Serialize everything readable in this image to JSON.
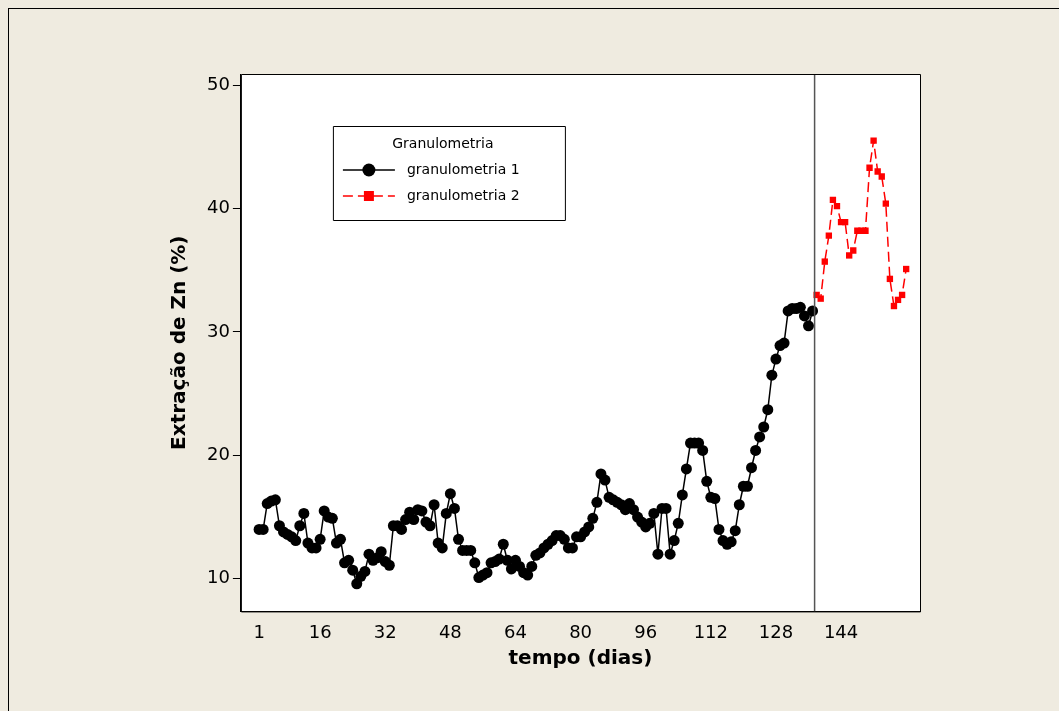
{
  "chart_data": {
    "type": "line",
    "xlabel": "tempo (dias)",
    "ylabel": "Extração de Zn (%)",
    "legend_title": "Granulometria",
    "legend": "top left",
    "grid": false,
    "xlim": [
      -3.47,
      163.4
    ],
    "xticks": [
      1,
      16,
      32,
      48,
      64,
      80,
      96,
      112,
      128,
      144
    ],
    "ylim": [
      7.36,
      50.9
    ],
    "yticks": [
      10,
      20,
      30,
      40,
      50
    ],
    "ref_lines": [
      {
        "axis": "x",
        "value": 137.5,
        "color": "#555555"
      }
    ],
    "series": [
      {
        "name": "granulometria 1",
        "color": "#000000",
        "marker": "circle",
        "line_style": "solid",
        "x": [
          1,
          2,
          3,
          4,
          5,
          6,
          7,
          8,
          9,
          10,
          11,
          12,
          13,
          14,
          15,
          16,
          17,
          18,
          19,
          20,
          21,
          22,
          23,
          24,
          25,
          26,
          27,
          28,
          29,
          30,
          31,
          32,
          33,
          34,
          35,
          36,
          37,
          38,
          39,
          40,
          41,
          42,
          43,
          44,
          45,
          46,
          47,
          48,
          49,
          50,
          51,
          52,
          53,
          54,
          55,
          56,
          57,
          58,
          59,
          60,
          61,
          62,
          63,
          64,
          65,
          66,
          67,
          68,
          69,
          70,
          71,
          72,
          73,
          74,
          75,
          76,
          77,
          78,
          79,
          80,
          81,
          82,
          83,
          84,
          85,
          86,
          87,
          88,
          89,
          90,
          91,
          92,
          93,
          94,
          95,
          96,
          97,
          98,
          99,
          100,
          101,
          102,
          103,
          104,
          105,
          106,
          107,
          108,
          109,
          110,
          111,
          112,
          113,
          114,
          115,
          116,
          117,
          118,
          119,
          120,
          121,
          122,
          123,
          124,
          125,
          126,
          127,
          128,
          129,
          130,
          131,
          132,
          133,
          134,
          135,
          136,
          137
        ],
        "values": [
          14.0,
          14.0,
          16.1,
          16.3,
          16.4,
          14.3,
          13.8,
          13.6,
          13.4,
          13.1,
          14.3,
          15.3,
          12.9,
          12.5,
          12.5,
          13.2,
          15.5,
          15.0,
          14.9,
          12.9,
          13.2,
          11.3,
          11.5,
          10.7,
          9.6,
          10.2,
          10.6,
          12.0,
          11.5,
          11.7,
          12.2,
          11.4,
          11.1,
          14.3,
          14.3,
          14.0,
          14.8,
          15.4,
          14.8,
          15.6,
          15.5,
          14.6,
          14.3,
          16.0,
          12.9,
          12.5,
          15.3,
          16.9,
          15.7,
          13.2,
          12.3,
          12.3,
          12.3,
          11.3,
          10.1,
          10.3,
          10.5,
          11.3,
          11.4,
          11.6,
          12.8,
          11.5,
          10.8,
          11.5,
          11.0,
          10.5,
          10.3,
          11.0,
          11.9,
          12.1,
          12.5,
          12.8,
          13.1,
          13.5,
          13.5,
          13.2,
          12.5,
          12.5,
          13.4,
          13.4,
          13.8,
          14.2,
          14.9,
          16.2,
          18.5,
          18.0,
          16.6,
          16.4,
          16.2,
          16.0,
          15.6,
          16.1,
          15.6,
          15.0,
          14.6,
          14.2,
          14.5,
          15.3,
          12.0,
          15.7,
          15.7,
          12.0,
          13.1,
          14.5,
          16.8,
          18.9,
          21.0,
          21.0,
          21.0,
          20.4,
          17.9,
          16.6,
          16.5,
          14.0,
          13.1,
          12.8,
          13.0,
          13.9,
          16.0,
          17.5,
          17.5,
          19.0,
          20.4,
          21.5,
          22.3,
          23.7,
          26.5,
          27.8,
          28.9,
          29.1,
          31.7,
          31.9,
          31.9,
          32.0,
          31.3,
          30.5,
          31.7
        ]
      },
      {
        "name": "granulometria 2",
        "color": "#ff0000",
        "marker": "square",
        "line_style": "dashed",
        "x": [
          138,
          139,
          140,
          141,
          142,
          143,
          144,
          145,
          146,
          147,
          148,
          149,
          150,
          151,
          152,
          153,
          154,
          155,
          156,
          157,
          158,
          159,
          160
        ],
        "values": [
          33.0,
          32.7,
          35.7,
          37.8,
          40.7,
          40.2,
          38.9,
          38.9,
          36.2,
          36.6,
          38.2,
          38.2,
          38.2,
          43.3,
          45.5,
          43.0,
          42.6,
          40.4,
          34.3,
          32.1,
          32.6,
          33.0,
          35.1
        ]
      }
    ]
  }
}
